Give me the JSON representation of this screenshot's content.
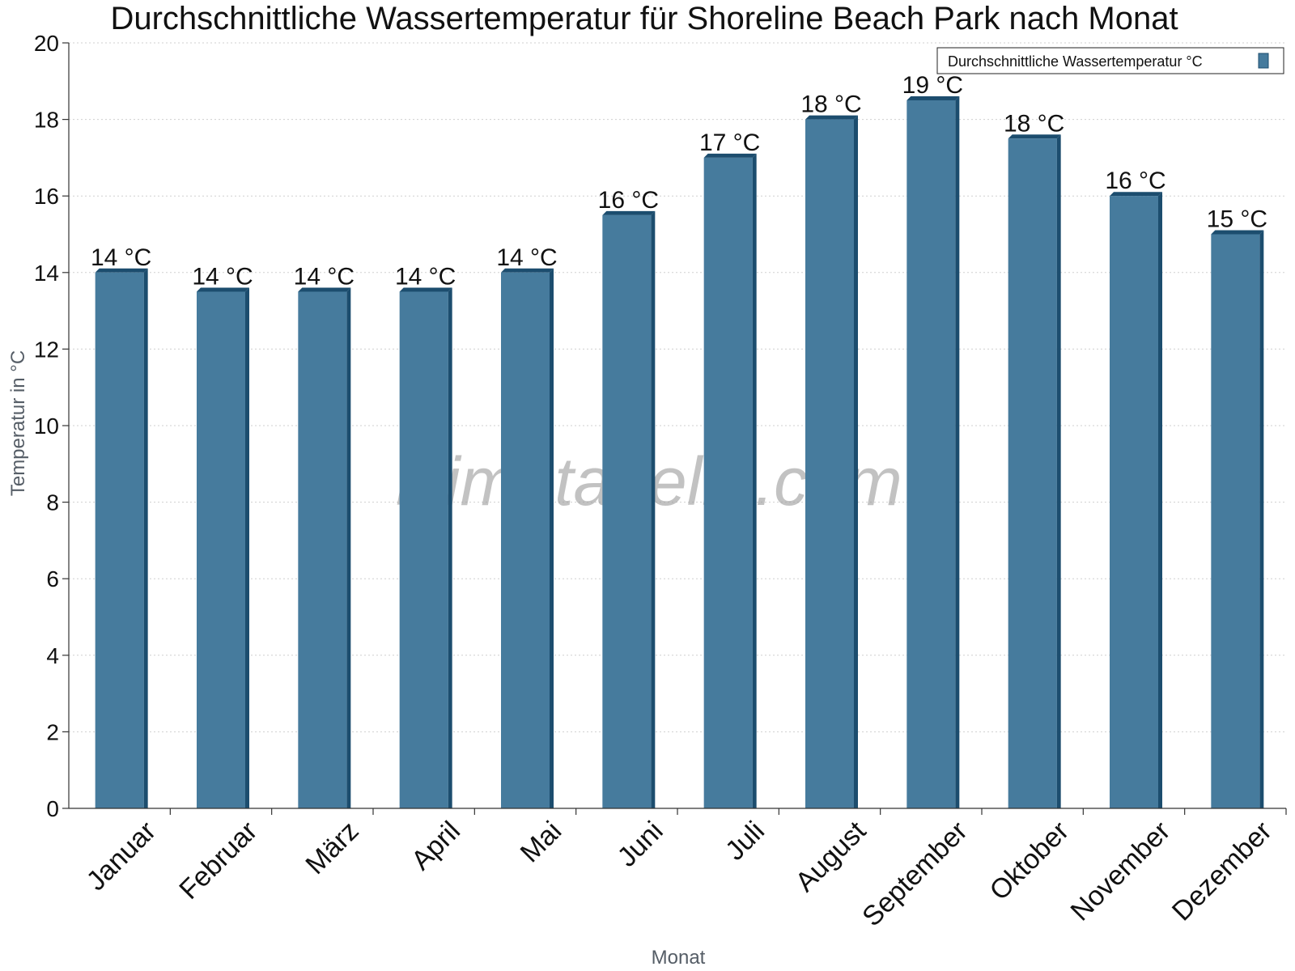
{
  "chart_data": {
    "type": "bar",
    "title": "Durchschnittliche Wassertemperatur für Shoreline Beach Park nach Monat",
    "xlabel": "Monat",
    "ylabel": "Temperatur in °C",
    "categories": [
      "Januar",
      "Februar",
      "März",
      "April",
      "Mai",
      "Juni",
      "Juli",
      "August",
      "September",
      "Oktober",
      "November",
      "Dezember"
    ],
    "series": [
      {
        "name": "Durchschnittliche Wassertemperatur °C",
        "values": [
          14.0,
          13.5,
          13.5,
          13.5,
          14.0,
          15.5,
          17.0,
          18.0,
          18.5,
          17.5,
          16.0,
          15.0
        ],
        "labels": [
          "14 °C",
          "14 °C",
          "14 °C",
          "14 °C",
          "14 °C",
          "16 °C",
          "17 °C",
          "18 °C",
          "19 °C",
          "18 °C",
          "16 °C",
          "15 °C"
        ]
      }
    ],
    "ylim": [
      0,
      20
    ],
    "yticks": [
      0,
      2,
      4,
      6,
      8,
      10,
      12,
      14,
      16,
      18,
      20
    ],
    "grid": true,
    "legend_position": "top-right",
    "colors": {
      "bar": "#467b9d",
      "bar_side": "#1c4d6e",
      "bar_top": "#1c4d6e"
    }
  },
  "watermark": "klimatabelle.com"
}
